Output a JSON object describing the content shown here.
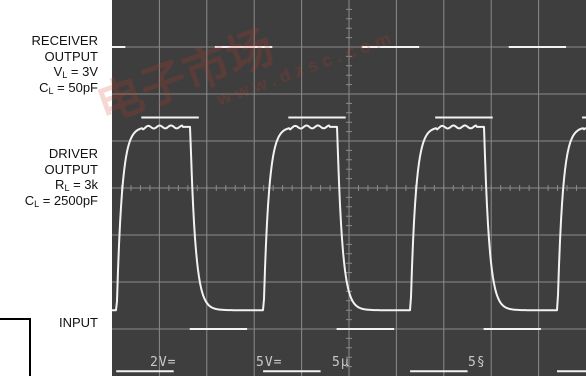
{
  "labels": {
    "receiver": {
      "l1": "RECEIVER",
      "l2": "OUTPUT",
      "vl_pre": "V",
      "vl_sub": "L",
      "vl_val": " = 3V",
      "cl_pre": "C",
      "cl_sub": "L",
      "cl_val": " = 50pF"
    },
    "driver": {
      "l1": "DRIVER",
      "l2": "OUTPUT",
      "rl_pre": "R",
      "rl_sub": "L",
      "rl_val": " = 3k",
      "cl_pre": "C",
      "cl_sub": "L",
      "cl_val": " = 2500pF"
    },
    "input": "INPUT"
  },
  "scope": {
    "readouts": [
      {
        "text": "2V="
      },
      {
        "text": "5V="
      },
      {
        "text": "5µ"
      },
      {
        "text": "5§"
      }
    ],
    "watermark": {
      "brand": "电子市场",
      "url": "www.dzsc.com"
    },
    "colors": {
      "screen": "#3e3e3e",
      "grid": "#8a8a8a",
      "trace": "#f2f2f2"
    }
  },
  "chart_data": {
    "type": "line",
    "title": "",
    "xlabel": "",
    "ylabel": "",
    "grid": true,
    "divisions": {
      "x": 10,
      "y": 8
    },
    "period_div": 3.1,
    "series": [
      {
        "name": "RECEIVER OUTPUT",
        "kind": "digital",
        "levels_div": [
          1.0,
          2.5
        ],
        "phase_div": 0.45
      },
      {
        "name": "DRIVER OUTPUT",
        "kind": "rc",
        "levels_div": [
          2.7,
          6.6
        ],
        "phase_div": 0.1
      },
      {
        "name": "INPUT",
        "kind": "digital",
        "levels_div": [
          7.0,
          7.9
        ],
        "phase_div": -0.08
      }
    ]
  }
}
